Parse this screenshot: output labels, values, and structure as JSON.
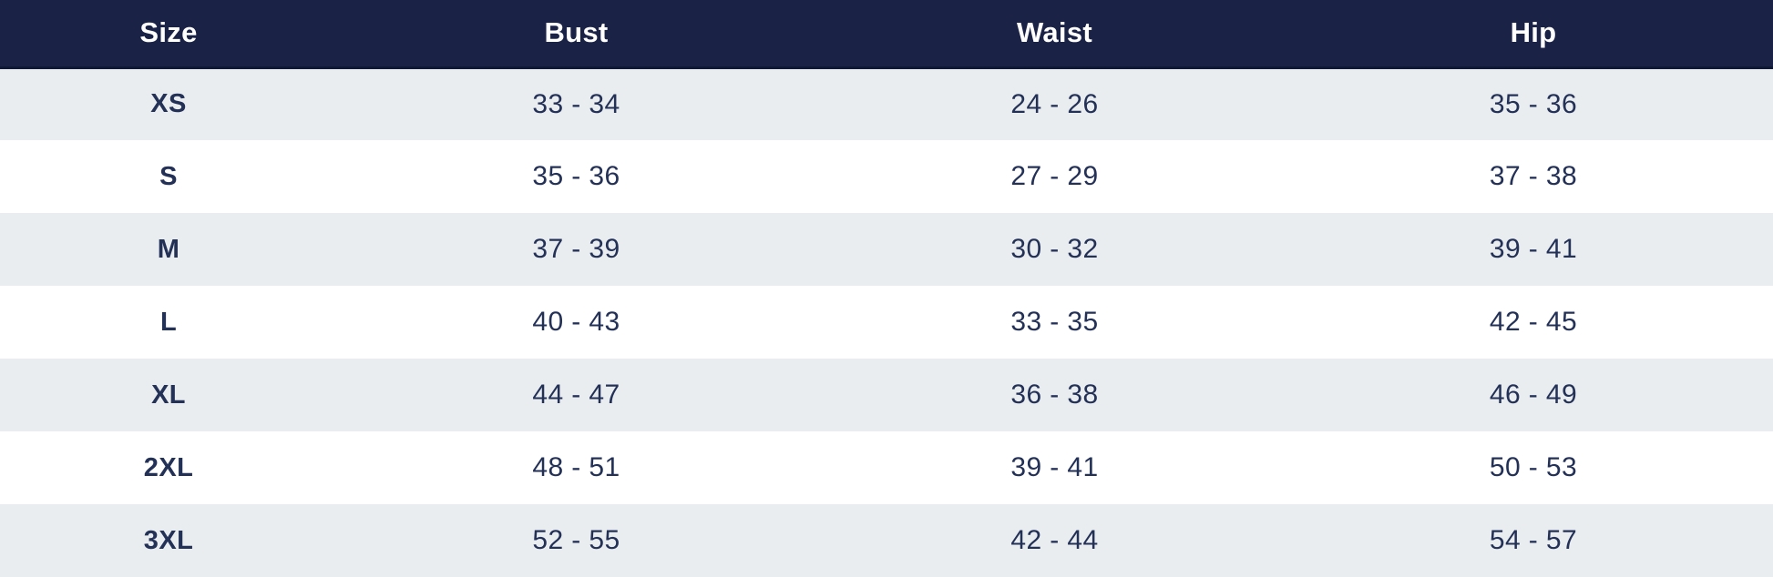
{
  "size_chart": {
    "columns": [
      {
        "key": "size",
        "label": "Size"
      },
      {
        "key": "bust",
        "label": "Bust"
      },
      {
        "key": "waist",
        "label": "Waist"
      },
      {
        "key": "hip",
        "label": "Hip"
      }
    ],
    "rows": [
      {
        "size": "XS",
        "bust": "33 - 34",
        "waist": "24 - 26",
        "hip": "35 - 36"
      },
      {
        "size": "S",
        "bust": "35 - 36",
        "waist": "27 - 29",
        "hip": "37 - 38"
      },
      {
        "size": "M",
        "bust": "37 - 39",
        "waist": "30 - 32",
        "hip": "39 - 41"
      },
      {
        "size": "L",
        "bust": "40 - 43",
        "waist": "33 - 35",
        "hip": "42 - 45"
      },
      {
        "size": "XL",
        "bust": "44 - 47",
        "waist": "36 - 38",
        "hip": "46 - 49"
      },
      {
        "size": "2XL",
        "bust": "48 - 51",
        "waist": "39 - 41",
        "hip": "50 - 53"
      },
      {
        "size": "3XL",
        "bust": "52 - 55",
        "waist": "42 - 44",
        "hip": "54 - 57"
      }
    ],
    "colors": {
      "header_bg": "#1a2246",
      "header_border": "#0f1835",
      "header_text": "#ffffff",
      "row_even_bg": "#e9edf0",
      "row_odd_bg": "#ffffff",
      "cell_text": "#243157"
    }
  }
}
